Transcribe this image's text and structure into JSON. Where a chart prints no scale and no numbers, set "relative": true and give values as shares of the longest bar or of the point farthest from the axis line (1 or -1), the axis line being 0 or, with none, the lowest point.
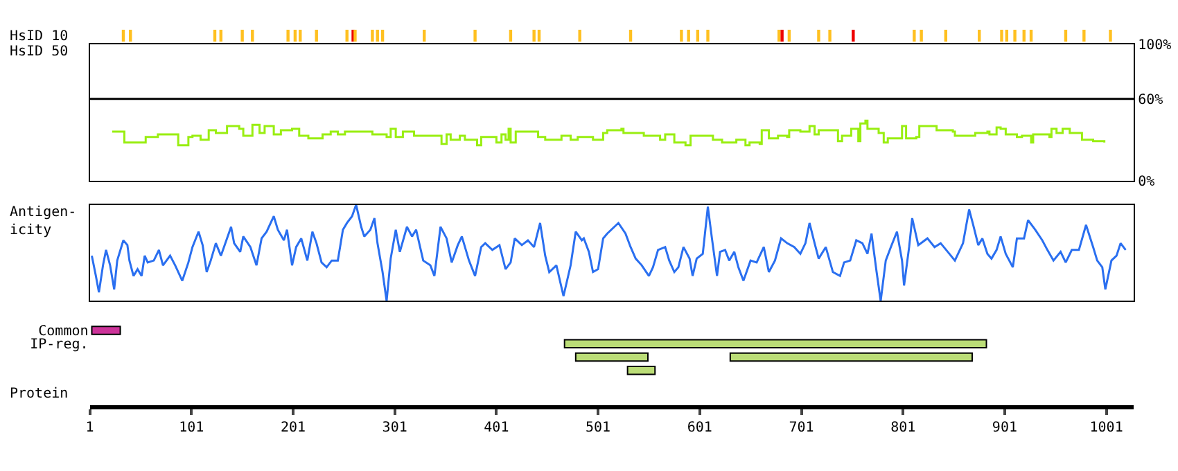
{
  "chart_data": [
    {
      "type": "bar",
      "title": "HsID 10",
      "relative": true,
      "xlim": [
        1,
        1028
      ],
      "tick_labels": false,
      "x": [
        34,
        41,
        124,
        130,
        151,
        161,
        196,
        203,
        208,
        224,
        254,
        260,
        262,
        279,
        284,
        289,
        330,
        380,
        415,
        438,
        443,
        483,
        533,
        583,
        590,
        599,
        609,
        679,
        682,
        689,
        718,
        729,
        752,
        812,
        819,
        843,
        876,
        898,
        903,
        911,
        920,
        927,
        961,
        979,
        1005
      ],
      "values": [
        1,
        1,
        1,
        1,
        1,
        1,
        1,
        1,
        1,
        1,
        1,
        1,
        1,
        1,
        1,
        1,
        1,
        1,
        1,
        1,
        1,
        1,
        1,
        1,
        1,
        1,
        1,
        1,
        1,
        1,
        1,
        1,
        1,
        1,
        1,
        1,
        1,
        1,
        1,
        1,
        1,
        1,
        1,
        1,
        1
      ],
      "colors": [
        "#ffc020",
        "#ffc020",
        "#ffc020",
        "#ffc020",
        "#ffc020",
        "#ffc020",
        "#ffc020",
        "#ffc020",
        "#ffc020",
        "#ffc020",
        "#ffc020",
        "#ee0000",
        "#ffc020",
        "#ffc020",
        "#ffc020",
        "#ffc020",
        "#ffc020",
        "#ffc020",
        "#ffc020",
        "#ffc020",
        "#ffc020",
        "#ffc020",
        "#ffc020",
        "#ffc020",
        "#ffc020",
        "#ffc020",
        "#ffc020",
        "#ffc020",
        "#ee0000",
        "#ffc020",
        "#ffc020",
        "#ffc020",
        "#ee0000",
        "#ffc020",
        "#ffc020",
        "#ffc020",
        "#ffc020",
        "#ffc020",
        "#ffc020",
        "#ffc020",
        "#ffc020",
        "#ffc020",
        "#ffc020",
        "#ffc020",
        "#ffc020"
      ]
    },
    {
      "type": "step",
      "title": "HsID 50",
      "xlim": [
        1,
        1028
      ],
      "ylim": [
        0,
        100
      ],
      "tick_labels": "y",
      "yticks": [
        {
          "value": 0,
          "label": "0%"
        },
        {
          "value": 60,
          "label": "60%"
        },
        {
          "value": 100,
          "label": "100%"
        }
      ],
      "ref_lines": [
        {
          "axis": "y",
          "value": 60,
          "color": "#000000"
        }
      ],
      "series": [
        {
          "color": "#99ee11",
          "x": [
            23,
            34,
            35,
            55,
            56,
            66,
            68,
            80,
            88,
            93,
            98,
            102,
            110,
            116,
            118,
            125,
            136,
            148,
            152,
            161,
            168,
            173,
            182,
            189,
            200,
            207,
            216,
            227,
            230,
            238,
            245,
            252,
            277,
            279,
            293,
            297,
            302,
            309,
            318,
            320,
            345,
            347,
            352,
            356,
            365,
            370,
            379,
            382,
            386,
            399,
            401,
            406,
            410,
            413,
            415,
            420,
            440,
            442,
            449,
            465,
            474,
            481,
            487,
            496,
            506,
            510,
            521,
            524,
            526,
            544,
            546,
            555,
            562,
            567,
            576,
            587,
            592,
            610,
            614,
            623,
            637,
            646,
            650,
            660,
            662,
            669,
            678,
            687,
            689,
            700,
            709,
            714,
            718,
            734,
            737,
            741,
            750,
            757,
            759,
            764,
            766,
            777,
            782,
            786,
            798,
            800,
            804,
            814,
            817,
            832,
            834,
            850,
            852,
            868,
            872,
            884,
            886,
            893,
            897,
            902,
            913,
            918,
            927,
            929,
            945,
            947,
            952,
            958,
            965,
            974,
            977,
            988,
            999
          ],
          "values": [
            36,
            36,
            28,
            28,
            32,
            32,
            34,
            34,
            26,
            26,
            32,
            33,
            30,
            30,
            37,
            35,
            40,
            38,
            33,
            41,
            35,
            40,
            34,
            37,
            38,
            33,
            31,
            31,
            34,
            36,
            34,
            36,
            36,
            34,
            32,
            38,
            32,
            36,
            36,
            33,
            33,
            27,
            34,
            30,
            33,
            30,
            30,
            26,
            32,
            32,
            28,
            34,
            30,
            38,
            28,
            36,
            36,
            32,
            30,
            33,
            30,
            32,
            32,
            30,
            35,
            37,
            37,
            38,
            35,
            35,
            33,
            33,
            30,
            34,
            28,
            26,
            33,
            33,
            30,
            28,
            30,
            26,
            28,
            27,
            37,
            31,
            33,
            32,
            37,
            36,
            40,
            34,
            37,
            37,
            29,
            33,
            38,
            29,
            42,
            44,
            38,
            35,
            28,
            31,
            31,
            40,
            31,
            32,
            40,
            40,
            37,
            36,
            33,
            33,
            35,
            36,
            34,
            39,
            38,
            34,
            32,
            33,
            28,
            34,
            32,
            38,
            35,
            38,
            35,
            35,
            30,
            29,
            28
          ]
        }
      ]
    },
    {
      "type": "line",
      "title": "Antigen-\nicity",
      "relative": true,
      "xlim": [
        1,
        1028
      ],
      "tick_labels": false,
      "series": [
        {
          "color": "#2a6ff0",
          "x": [
            3,
            7,
            10,
            14,
            17,
            21,
            25,
            28,
            34,
            38,
            40,
            44,
            48,
            52,
            55,
            58,
            64,
            69,
            73,
            80,
            85,
            92,
            98,
            102,
            108,
            112,
            116,
            120,
            125,
            130,
            133,
            140,
            143,
            149,
            152,
            159,
            165,
            170,
            175,
            182,
            186,
            192,
            195,
            200,
            204,
            209,
            215,
            220,
            224,
            229,
            234,
            239,
            245,
            250,
            254,
            259,
            263,
            268,
            271,
            277,
            281,
            284,
            289,
            293,
            297,
            302,
            306,
            313,
            318,
            322,
            329,
            336,
            340,
            346,
            352,
            357,
            363,
            367,
            374,
            380,
            386,
            390,
            397,
            404,
            410,
            415,
            419,
            426,
            432,
            438,
            444,
            449,
            453,
            460,
            467,
            474,
            479,
            485,
            487,
            492,
            496,
            501,
            506,
            510,
            517,
            521,
            528,
            533,
            538,
            544,
            551,
            555,
            560,
            567,
            571,
            576,
            580,
            585,
            591,
            594,
            598,
            604,
            609,
            613,
            618,
            621,
            626,
            630,
            635,
            639,
            644,
            651,
            657,
            664,
            669,
            675,
            681,
            687,
            694,
            700,
            705,
            709,
            714,
            718,
            725,
            732,
            739,
            743,
            749,
            755,
            761,
            766,
            770,
            775,
            779,
            784,
            789,
            795,
            800,
            802,
            807,
            810,
            816,
            825,
            832,
            838,
            845,
            852,
            860,
            866,
            870,
            875,
            879,
            884,
            888,
            893,
            897,
            902,
            909,
            913,
            920,
            924,
            931,
            938,
            943,
            949,
            956,
            961,
            967,
            974,
            981,
            988,
            992,
            997,
            1000,
            1006,
            1011,
            1015,
            1020
          ],
          "values": [
            0.47,
            0.26,
            0.09,
            0.37,
            0.53,
            0.37,
            0.12,
            0.42,
            0.63,
            0.58,
            0.42,
            0.26,
            0.33,
            0.26,
            0.47,
            0.4,
            0.42,
            0.53,
            0.37,
            0.47,
            0.37,
            0.21,
            0.4,
            0.56,
            0.72,
            0.58,
            0.3,
            0.42,
            0.6,
            0.47,
            0.56,
            0.77,
            0.6,
            0.51,
            0.67,
            0.56,
            0.37,
            0.65,
            0.72,
            0.88,
            0.74,
            0.63,
            0.74,
            0.37,
            0.56,
            0.65,
            0.42,
            0.72,
            0.6,
            0.4,
            0.35,
            0.42,
            0.42,
            0.74,
            0.81,
            0.88,
            1,
            0.77,
            0.67,
            0.74,
            0.86,
            0.6,
            0.3,
            0,
            0.44,
            0.74,
            0.51,
            0.77,
            0.67,
            0.74,
            0.42,
            0.37,
            0.26,
            0.77,
            0.65,
            0.4,
            0.58,
            0.67,
            0.42,
            0.26,
            0.56,
            0.6,
            0.53,
            0.58,
            0.33,
            0.4,
            0.65,
            0.58,
            0.63,
            0.56,
            0.81,
            0.47,
            0.3,
            0.37,
            0.05,
            0.37,
            0.72,
            0.63,
            0.65,
            0.51,
            0.3,
            0.33,
            0.65,
            0.7,
            0.77,
            0.81,
            0.7,
            0.56,
            0.44,
            0.37,
            0.26,
            0.35,
            0.53,
            0.56,
            0.42,
            0.3,
            0.35,
            0.56,
            0.44,
            0.26,
            0.44,
            0.49,
            0.98,
            0.65,
            0.26,
            0.51,
            0.53,
            0.42,
            0.51,
            0.35,
            0.21,
            0.42,
            0.4,
            0.56,
            0.3,
            0.42,
            0.65,
            0.6,
            0.56,
            0.49,
            0.6,
            0.81,
            0.6,
            0.44,
            0.56,
            0.3,
            0.26,
            0.4,
            0.42,
            0.63,
            0.6,
            0.49,
            0.7,
            0.3,
            0,
            0.42,
            0.56,
            0.72,
            0.42,
            0.16,
            0.56,
            0.86,
            0.58,
            0.65,
            0.56,
            0.6,
            0.51,
            0.42,
            0.6,
            0.95,
            0.79,
            0.58,
            0.65,
            0.49,
            0.44,
            0.53,
            0.67,
            0.49,
            0.35,
            0.65,
            0.65,
            0.84,
            0.74,
            0.63,
            0.53,
            0.42,
            0.51,
            0.4,
            0.53,
            0.53,
            0.79,
            0.56,
            0.42,
            0.35,
            0.12,
            0.42,
            0.47,
            0.6,
            0.53
          ]
        }
      ]
    },
    {
      "type": "bar",
      "orientation": "horizontal",
      "xlabel": "Protein",
      "xlim": [
        1,
        1028
      ],
      "xticks": [
        1,
        101,
        201,
        301,
        401,
        501,
        601,
        701,
        801,
        901,
        1001
      ],
      "categories": [
        "Common",
        "IP-reg.",
        null,
        null
      ],
      "series": [
        {
          "color": "#cc3399",
          "values": [
            28,
            null,
            null,
            null
          ],
          "base": [
            3,
            null,
            null,
            null
          ]
        },
        {
          "color": "#bbdd77",
          "values": [
            null,
            415,
            71,
            27
          ],
          "base": [
            null,
            468,
            479,
            530
          ]
        },
        {
          "color": "#bbdd77",
          "values": [
            null,
            null,
            238,
            null
          ],
          "base": [
            null,
            null,
            631,
            null
          ]
        }
      ]
    }
  ]
}
